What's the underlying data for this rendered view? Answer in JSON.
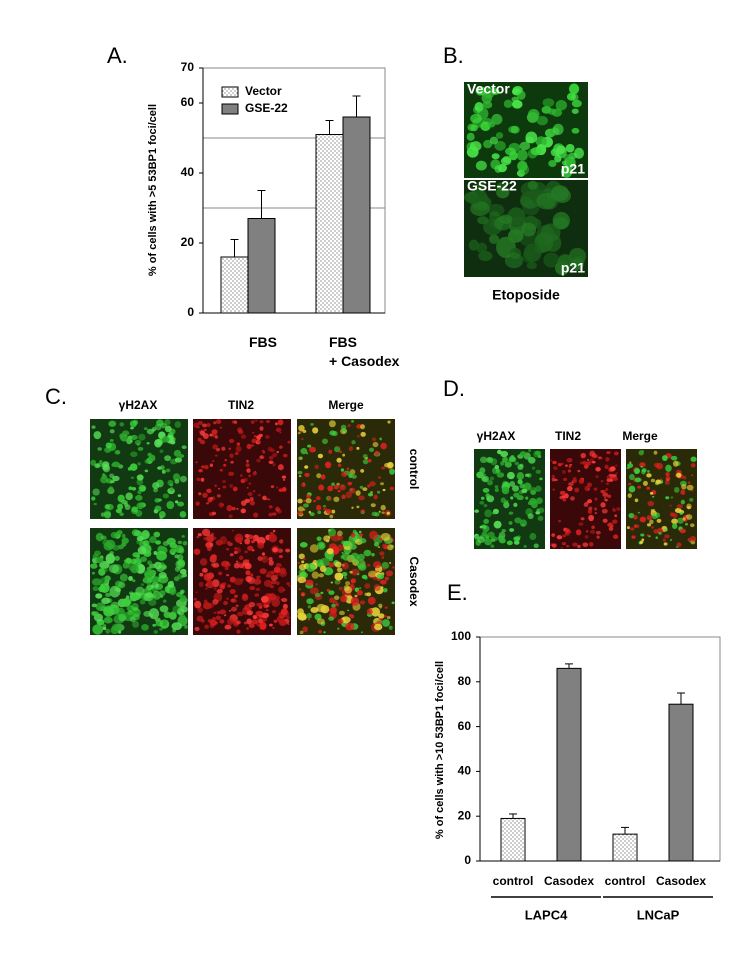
{
  "panel_labels": [
    "A.",
    "B.",
    "C.",
    "D.",
    "E."
  ],
  "chart_data": [
    {
      "type": "bar",
      "y_label": "% of cells with >5 53BP1 foci/cell",
      "categories": [
        "FBS",
        "FBS\n+ Casodex"
      ],
      "series": [
        {
          "name": "Vector",
          "color": "#ffffff",
          "pattern": "dots",
          "values": [
            16,
            51
          ],
          "errors": [
            5,
            4
          ]
        },
        {
          "name": "GSE-22",
          "color": "#808080",
          "pattern": "solid",
          "values": [
            27,
            56
          ],
          "errors": [
            8,
            6
          ]
        }
      ],
      "ylim": [
        0,
        70
      ],
      "yticks": [
        0,
        20,
        40,
        60,
        70
      ],
      "ygrid": [
        30,
        50
      ],
      "legend": "upper left"
    },
    {
      "type": "bar",
      "y_label": "% of cells with >10 53BP1 foci/cell",
      "categories": [
        "control",
        "Casodex",
        "control",
        "Casodex"
      ],
      "values": [
        19,
        86,
        12,
        70
      ],
      "errors": [
        2,
        2,
        3,
        5
      ],
      "colors": [
        "#ffffff",
        "#808080",
        "#ffffff",
        "#808080"
      ],
      "patterns": [
        "dots",
        "solid",
        "dots",
        "solid"
      ],
      "groups": [
        "LAPC4",
        "LNCaP"
      ],
      "ylim": [
        0,
        100
      ],
      "yticks": [
        0,
        20,
        40,
        60,
        80,
        100
      ]
    }
  ],
  "panel_b": {
    "images": [
      {
        "label": "Vector",
        "stain": "p21"
      },
      {
        "label": "GSE-22",
        "stain": "p21"
      }
    ],
    "caption": "Etoposide"
  },
  "panel_c": {
    "columns": [
      "γH2AX",
      "TIN2",
      "Merge"
    ],
    "rows": [
      "control",
      "Casodex"
    ]
  },
  "panel_d": {
    "columns": [
      "γH2AX",
      "TIN2",
      "Merge"
    ]
  }
}
